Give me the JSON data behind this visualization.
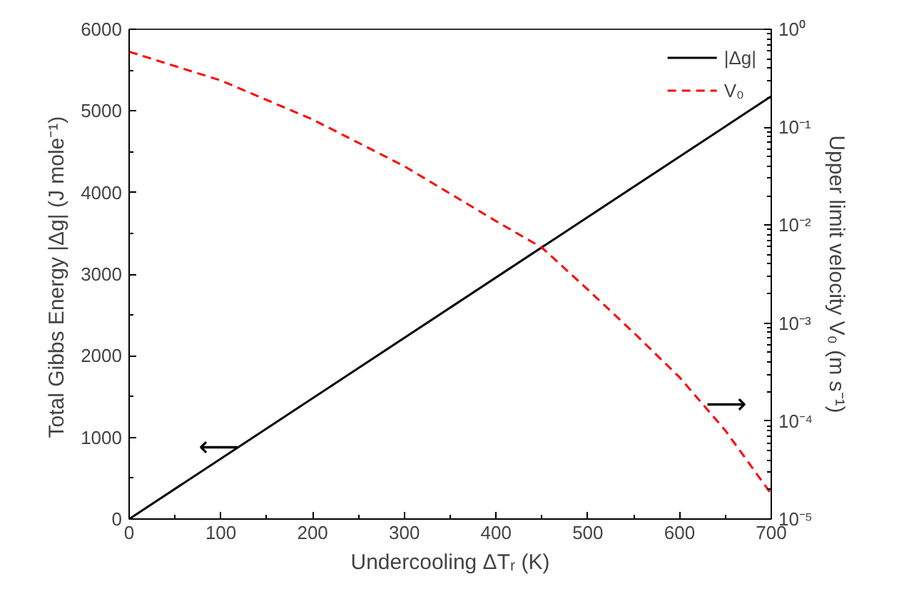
{
  "chart_data": {
    "type": "line",
    "xlabel": "Undercooling ΔTᵣ (K)",
    "ylabel": "Total Gibbs Energy  |Δg| (J mole⁻¹)",
    "y2label": "Upper limit velocity V₀ (m s⁻¹)",
    "x": [
      0,
      100,
      200,
      300,
      400,
      450,
      500,
      550,
      600,
      650,
      700
    ],
    "series": [
      {
        "name": "|Δg|",
        "color": "#000000",
        "line_style": "solid",
        "x": [
          0,
          700
        ],
        "values": [
          0,
          5180
        ]
      },
      {
        "name": "V₀",
        "color": "#ff0000",
        "line_style": "dashed",
        "axis": "y2",
        "values": [
          0.59,
          0.3,
          0.12,
          0.04,
          0.011,
          0.0059,
          0.0022,
          0.0008,
          0.00028,
          8e-05,
          1.8e-05
        ]
      }
    ],
    "xlim": [
      0,
      700
    ],
    "xticks": [
      0,
      100,
      200,
      300,
      400,
      500,
      600,
      700
    ],
    "ylim": [
      0,
      6000
    ],
    "yticks": [
      0,
      1000,
      2000,
      3000,
      4000,
      5000,
      6000
    ],
    "y2lim": [
      1e-05,
      1
    ],
    "y2ticks": [
      {
        "value": 1e-05,
        "label": "10⁻⁵"
      },
      {
        "value": 0.0001,
        "label": "10⁻⁴"
      },
      {
        "value": 0.001,
        "label": "10⁻³"
      },
      {
        "value": 0.01,
        "label": "10⁻²"
      },
      {
        "value": 0.1,
        "label": "10⁻¹"
      },
      {
        "value": 1,
        "label": "10⁰"
      }
    ],
    "log": "y2",
    "grid": false,
    "legend": "top right",
    "marker": "none",
    "annotations": [
      "⟵",
      "⟶"
    ]
  }
}
